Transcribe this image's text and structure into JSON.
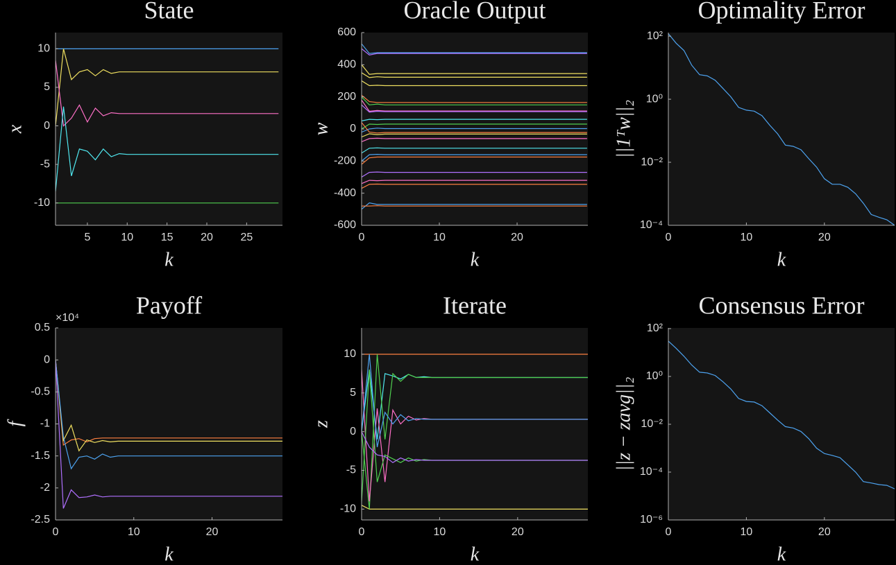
{
  "chart_data": [
    {
      "type": "line",
      "title": "State",
      "xlabel": "k",
      "ylabel": "x",
      "x": [
        1,
        2,
        3,
        4,
        5,
        6,
        7,
        8,
        9,
        10,
        29
      ],
      "xlim": [
        1,
        29.5
      ],
      "xticks": [
        5,
        10,
        15,
        20,
        25
      ],
      "ylim": [
        -12.9,
        12.1
      ],
      "yticks": [
        -10,
        -5,
        0,
        5,
        10
      ],
      "series": [
        {
          "color": "#4da3f0",
          "values": [
            10,
            10,
            10,
            10,
            10,
            10,
            10,
            10,
            10,
            10,
            10
          ]
        },
        {
          "color": "#f0e060",
          "values": [
            0,
            10,
            6,
            7,
            7.3,
            6.5,
            7.3,
            6.8,
            7,
            7,
            7
          ]
        },
        {
          "color": "#ff70c8",
          "values": [
            8.5,
            0,
            1,
            2.7,
            0.5,
            2.3,
            1.3,
            1.7,
            1.6,
            1.6,
            1.6
          ]
        },
        {
          "color": "#50e8f0",
          "values": [
            -8.5,
            2.5,
            -6.5,
            -3,
            -3.3,
            -4.4,
            -3,
            -4,
            -3.6,
            -3.7,
            -3.7
          ]
        },
        {
          "color": "#50d050",
          "values": [
            -10,
            -10,
            -10,
            -10,
            -10,
            -10,
            -10,
            -10,
            -10,
            -10,
            -10
          ]
        }
      ]
    },
    {
      "type": "line",
      "title": "Oracle Output",
      "xlabel": "k",
      "ylabel": "w",
      "x": [
        0,
        1,
        2,
        3,
        29
      ],
      "xlim": [
        0,
        29.1
      ],
      "xticks": [
        0,
        10,
        20
      ],
      "ylim": [
        -600,
        600
      ],
      "yticks": [
        -600,
        -400,
        -200,
        0,
        200,
        400,
        600
      ],
      "series": [
        {
          "color": "#4da3f0",
          "values": [
            530,
            470,
            475,
            475,
            475
          ]
        },
        {
          "color": "#b070ff",
          "values": [
            500,
            460,
            470,
            470,
            470
          ]
        },
        {
          "color": "#f0e060",
          "values": [
            400,
            340,
            345,
            345,
            345
          ]
        },
        {
          "color": "#f0e060",
          "values": [
            350,
            320,
            325,
            322,
            322
          ]
        },
        {
          "color": "#f0e060",
          "values": [
            300,
            270,
            272,
            270,
            270
          ]
        },
        {
          "color": "#ff8040",
          "values": [
            210,
            170,
            165,
            165,
            165
          ]
        },
        {
          "color": "#50d050",
          "values": [
            200,
            150,
            155,
            150,
            150
          ]
        },
        {
          "color": "#ff70c8",
          "values": [
            180,
            110,
            115,
            112,
            112
          ]
        },
        {
          "color": "#b070ff",
          "values": [
            150,
            105,
            110,
            108,
            108
          ]
        },
        {
          "color": "#50e8f0",
          "values": [
            50,
            60,
            58,
            60,
            60
          ]
        },
        {
          "color": "#50d050",
          "values": [
            0,
            30,
            28,
            30,
            30
          ]
        },
        {
          "color": "#4da3f0",
          "values": [
            -20,
            0,
            5,
            2,
            2
          ]
        },
        {
          "color": "#ff8040",
          "values": [
            40,
            -20,
            -25,
            -22,
            -22
          ]
        },
        {
          "color": "#f0e060",
          "values": [
            -50,
            -30,
            -35,
            -32,
            -32
          ]
        },
        {
          "color": "#ff70c8",
          "values": [
            -80,
            -60,
            -58,
            -60,
            -60
          ]
        },
        {
          "color": "#50e8f0",
          "values": [
            -150,
            -120,
            -118,
            -120,
            -120
          ]
        },
        {
          "color": "#4da3f0",
          "values": [
            -200,
            -160,
            -158,
            -160,
            -160
          ]
        },
        {
          "color": "#ff8040",
          "values": [
            -220,
            -180,
            -175,
            -175,
            -175
          ]
        },
        {
          "color": "#b070ff",
          "values": [
            -300,
            -270,
            -268,
            -270,
            -270
          ]
        },
        {
          "color": "#ff70c8",
          "values": [
            -340,
            -320,
            -322,
            -320,
            -320
          ]
        },
        {
          "color": "#ff8040",
          "values": [
            -370,
            -345,
            -343,
            -345,
            -345
          ]
        },
        {
          "color": "#4da3f0",
          "values": [
            -500,
            -460,
            -470,
            -470,
            -470
          ]
        },
        {
          "color": "#ff8040",
          "values": [
            -480,
            -480,
            -478,
            -480,
            -480
          ]
        }
      ]
    },
    {
      "type": "line",
      "title": "Optimality Error",
      "xlabel": "k",
      "ylabel": "||1ᵀw||₂",
      "ylog": true,
      "x": [
        0,
        1,
        2,
        3,
        4,
        5,
        6,
        7,
        8,
        9,
        10,
        11,
        12,
        13,
        14,
        15,
        16,
        17,
        18,
        19,
        20,
        21,
        22,
        23,
        24,
        25,
        26,
        27,
        28,
        29
      ],
      "xlim": [
        0,
        29
      ],
      "xticks": [
        0,
        10,
        20
      ],
      "ylim": [
        0.0001,
        130
      ],
      "yticks": [
        {
          "value": 0.0001,
          "label": "10⁻⁴"
        },
        {
          "value": 0.01,
          "label": "10⁻²"
        },
        {
          "value": 1,
          "label": "10⁰"
        },
        {
          "value": 100,
          "label": "10²"
        }
      ],
      "series": [
        {
          "color": "#4da3f0",
          "values": [
            120,
            60,
            35,
            12,
            6,
            5.5,
            4,
            2.2,
            1.2,
            0.55,
            0.45,
            0.42,
            0.3,
            0.15,
            0.08,
            0.035,
            0.032,
            0.025,
            0.013,
            0.007,
            0.003,
            0.002,
            0.002,
            0.0016,
            0.001,
            0.0005,
            0.00022,
            0.00018,
            0.00015,
            0.0001
          ]
        }
      ]
    },
    {
      "type": "line",
      "title": "Payoff",
      "xlabel": "k",
      "ylabel": "f",
      "exponent": "×10⁴",
      "x": [
        0,
        1,
        2,
        3,
        4,
        5,
        6,
        7,
        8,
        29
      ],
      "xlim": [
        0,
        29
      ],
      "xticks": [
        0,
        10,
        20
      ],
      "ylim": [
        -25000,
        5000
      ],
      "yticks": [
        {
          "value": -25000,
          "label": "-2.5"
        },
        {
          "value": -20000,
          "label": "-2"
        },
        {
          "value": -15000,
          "label": "-1.5"
        },
        {
          "value": -10000,
          "label": "-1"
        },
        {
          "value": -5000,
          "label": "-0.5"
        },
        0,
        {
          "value": 5000,
          "label": "0.5"
        }
      ],
      "series": [
        {
          "color": "#ff8040",
          "values": [
            0,
            -13300,
            -12500,
            -12300,
            -12800,
            -12300,
            -12200,
            -12200,
            -12200,
            -12200
          ]
        },
        {
          "color": "#f0e060",
          "values": [
            0,
            -12600,
            -10200,
            -14200,
            -12500,
            -12900,
            -12600,
            -12800,
            -12700,
            -12700
          ]
        },
        {
          "color": "#4da3f0",
          "values": [
            0,
            -12000,
            -17000,
            -15200,
            -15000,
            -15500,
            -14700,
            -15200,
            -15000,
            -15000
          ]
        },
        {
          "color": "#b070ff",
          "values": [
            0,
            -23200,
            -20300,
            -21500,
            -21400,
            -21100,
            -21400,
            -21300,
            -21300,
            -21300
          ]
        }
      ]
    },
    {
      "type": "line",
      "title": "Iterate",
      "xlabel": "k",
      "ylabel": "z",
      "x": [
        0,
        1,
        2,
        3,
        4,
        5,
        6,
        7,
        8,
        9,
        10,
        29
      ],
      "xlim": [
        0,
        29
      ],
      "xticks": [
        0,
        10,
        20
      ],
      "ylim": [
        -11.4,
        13.4
      ],
      "yticks": [
        -10,
        -5,
        0,
        5,
        10
      ],
      "series": [
        {
          "color": "#ff8040",
          "values": [
            10,
            10,
            10,
            10,
            10,
            10,
            10,
            10,
            10,
            10,
            10,
            10
          ]
        },
        {
          "color": "#f0e060",
          "values": [
            -9.5,
            -10,
            -10,
            -10,
            -10,
            -10,
            -10,
            -10,
            -10,
            -10,
            -10,
            -10
          ]
        },
        {
          "color": "#50e8f0",
          "values": [
            0,
            8,
            -1,
            7.5,
            7.2,
            6.8,
            7.4,
            7,
            7.1,
            7,
            7,
            7
          ]
        },
        {
          "color": "#50d050",
          "values": [
            0,
            -10,
            10,
            -1,
            7.5,
            6.5,
            7.4,
            7,
            7,
            7,
            7,
            7
          ]
        },
        {
          "color": "#ff70c8",
          "values": [
            8,
            -9,
            3,
            -6.5,
            2.8,
            1,
            2,
            1.5,
            1.7,
            1.6,
            1.6,
            1.6
          ]
        },
        {
          "color": "#4da3f0",
          "values": [
            0,
            10,
            -2,
            2.5,
            1,
            2.2,
            1.4,
            1.7,
            1.6,
            1.6,
            1.6,
            1.6
          ]
        },
        {
          "color": "#50d050",
          "values": [
            -9,
            8,
            -6.5,
            -3,
            -3.5,
            -4,
            -3.4,
            -3.8,
            -3.6,
            -3.7,
            -3.7,
            -3.7
          ]
        },
        {
          "color": "#b070ff",
          "values": [
            0,
            -2,
            -3,
            -3.2,
            -4,
            -3.4,
            -3.8,
            -3.6,
            -3.7,
            -3.7,
            -3.7,
            -3.7
          ]
        }
      ]
    },
    {
      "type": "line",
      "title": "Consensus Error",
      "xlabel": "k",
      "ylabel": "||z − zavg||₂",
      "ylog": true,
      "x": [
        0,
        1,
        2,
        3,
        4,
        5,
        6,
        7,
        8,
        9,
        10,
        11,
        12,
        13,
        14,
        15,
        16,
        17,
        18,
        19,
        20,
        21,
        22,
        23,
        24,
        25,
        26,
        27,
        28,
        29
      ],
      "xlim": [
        0,
        29
      ],
      "xticks": [
        0,
        10,
        20
      ],
      "ylim": [
        1e-06,
        107
      ],
      "yticks": [
        {
          "value": 1e-06,
          "label": "10⁻⁶"
        },
        {
          "value": 0.0001,
          "label": "10⁻⁴"
        },
        {
          "value": 0.01,
          "label": "10⁻²"
        },
        {
          "value": 1,
          "label": "10⁰"
        },
        {
          "value": 100,
          "label": "10²"
        }
      ],
      "series": [
        {
          "color": "#4da3f0",
          "values": [
            30,
            15,
            7,
            3,
            1.5,
            1.4,
            1.1,
            0.6,
            0.3,
            0.12,
            0.09,
            0.085,
            0.06,
            0.03,
            0.015,
            0.008,
            0.007,
            0.005,
            0.0025,
            0.001,
            0.0006,
            0.0005,
            0.0004,
            0.0002,
            0.0001,
            4e-05,
            3.5e-05,
            3e-05,
            2.8e-05,
            2e-05
          ]
        }
      ]
    }
  ]
}
